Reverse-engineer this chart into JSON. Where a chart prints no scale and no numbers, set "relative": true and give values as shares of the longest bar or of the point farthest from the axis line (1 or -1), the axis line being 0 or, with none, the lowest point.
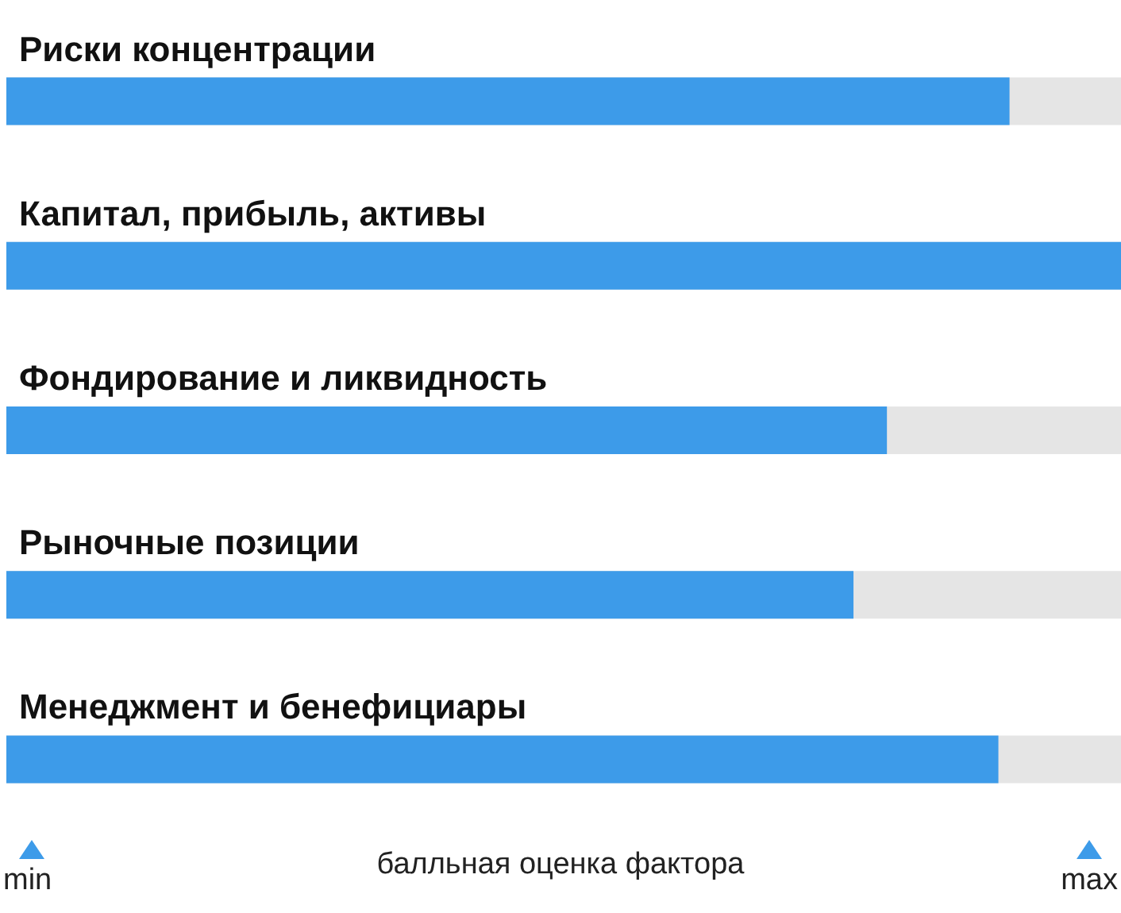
{
  "chart_data": {
    "type": "bar",
    "orientation": "horizontal",
    "relative": true,
    "categories": [
      "Риски концентрации",
      "Капитал, прибыль, активы",
      "Фондирование и ликвидность",
      "Рыночные позиции",
      "Менеджмент и бенефициары"
    ],
    "values": [
      0.9,
      1,
      0.79,
      0.76,
      0.89
    ],
    "color": "#3d9be9",
    "xlabel": "балльная оценка фактора",
    "annotations": [
      "min",
      "max"
    ]
  }
}
